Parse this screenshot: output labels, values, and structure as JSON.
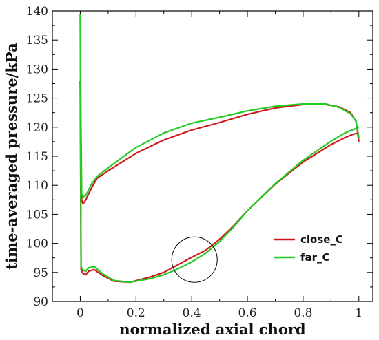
{
  "chart_data": {
    "type": "line",
    "xlabel": "normalized axial chord",
    "ylabel": "time-averaged pressure/kPa",
    "xlim": [
      -0.1,
      1.05
    ],
    "ylim": [
      90,
      140
    ],
    "xticks": [
      "0",
      "0.2",
      "0.4",
      "0.6",
      "0.8",
      "1"
    ],
    "xtick_values": [
      0,
      0.2,
      0.4,
      0.6,
      0.8,
      1.0
    ],
    "yticks": [
      "90",
      "95",
      "100",
      "105",
      "110",
      "115",
      "120",
      "125",
      "130",
      "135",
      "140"
    ],
    "ytick_values": [
      90,
      95,
      100,
      105,
      110,
      115,
      120,
      125,
      130,
      135,
      140
    ],
    "grid": false,
    "legend_position": "lower-right",
    "annotation": {
      "type": "circle",
      "center": [
        0.41,
        97.2
      ],
      "note": "circled region near x=0.41"
    },
    "series": [
      {
        "name": "close_C",
        "color": "#cc1a1a",
        "upper": {
          "x": [
            0.0,
            0.005,
            0.01,
            0.02,
            0.04,
            0.06,
            0.1,
            0.2,
            0.3,
            0.4,
            0.5,
            0.6,
            0.7,
            0.8,
            0.88,
            0.93,
            0.97,
            0.99,
            1.0
          ],
          "y": [
            128,
            107.5,
            106.8,
            107.5,
            109.5,
            111.2,
            112.5,
            115.5,
            117.8,
            119.5,
            120.8,
            122.2,
            123.3,
            123.9,
            123.9,
            123.5,
            122.5,
            121.0,
            117.5
          ]
        },
        "lower": {
          "x": [
            0.0,
            0.003,
            0.01,
            0.02,
            0.03,
            0.05,
            0.08,
            0.12,
            0.18,
            0.25,
            0.3,
            0.35,
            0.4,
            0.45,
            0.5,
            0.55,
            0.6,
            0.7,
            0.8,
            0.9,
            0.95,
            0.98,
            1.0
          ],
          "y": [
            128,
            95.5,
            94.8,
            94.6,
            95.2,
            95.5,
            94.5,
            93.5,
            93.3,
            94.2,
            95.0,
            96.3,
            97.6,
            98.8,
            100.7,
            103.0,
            105.6,
            110.2,
            114.0,
            117.0,
            118.2,
            118.8,
            119.0
          ]
        }
      },
      {
        "name": "far_C",
        "color": "#22cc22",
        "upper": {
          "x": [
            0.0,
            0.002,
            0.005,
            0.01,
            0.02,
            0.04,
            0.06,
            0.1,
            0.2,
            0.3,
            0.4,
            0.5,
            0.6,
            0.7,
            0.8,
            0.88,
            0.93,
            0.97,
            0.99,
            1.0
          ],
          "y": [
            139.5,
            124,
            108.5,
            108.0,
            108.2,
            110.2,
            111.5,
            113.0,
            116.5,
            119.0,
            120.7,
            121.7,
            122.8,
            123.6,
            124.0,
            124.0,
            123.4,
            122.3,
            121.0,
            118.2
          ]
        },
        "lower": {
          "x": [
            0.0,
            0.003,
            0.01,
            0.02,
            0.03,
            0.05,
            0.08,
            0.12,
            0.18,
            0.25,
            0.3,
            0.35,
            0.4,
            0.45,
            0.5,
            0.55,
            0.6,
            0.7,
            0.8,
            0.9,
            0.95,
            0.98,
            1.0
          ],
          "y": [
            139.5,
            96.0,
            95.4,
            95.2,
            95.8,
            96.0,
            94.8,
            93.6,
            93.3,
            93.9,
            94.6,
            95.6,
            96.8,
            98.3,
            100.3,
            102.8,
            105.6,
            110.3,
            114.3,
            117.6,
            119.0,
            119.6,
            120.0
          ]
        }
      }
    ]
  }
}
